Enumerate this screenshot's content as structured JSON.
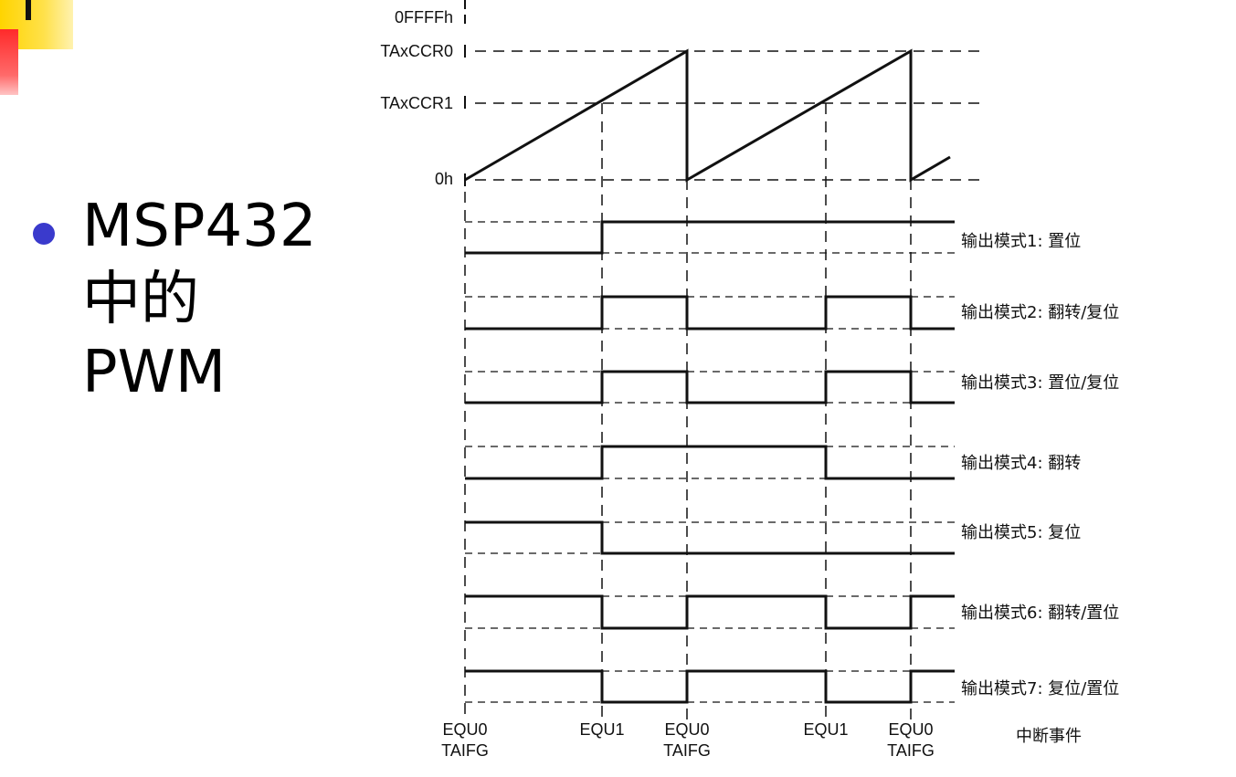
{
  "slide": {
    "bullet_lines": [
      "MSP432",
      "中的",
      "PWM"
    ]
  },
  "timer_axis": {
    "levels": [
      "0FFFFh",
      "TAxCCR0",
      "TAxCCR1",
      "0h"
    ]
  },
  "output_modes": [
    "输出模式1: 置位",
    "输出模式2: 翻转/复位",
    "输出模式3: 置位/复位",
    "输出模式4: 翻转",
    "输出模式5: 复位",
    "输出模式6: 翻转/置位",
    "输出模式7: 复位/置位"
  ],
  "events": [
    {
      "line1": "EQU0",
      "line2": "TAIFG"
    },
    {
      "line1": "EQU1",
      "line2": ""
    },
    {
      "line1": "EQU0",
      "line2": "TAIFG"
    },
    {
      "line1": "EQU1",
      "line2": ""
    },
    {
      "line1": "EQU0",
      "line2": "TAIFG"
    }
  ],
  "event_caption": "中断事件"
}
